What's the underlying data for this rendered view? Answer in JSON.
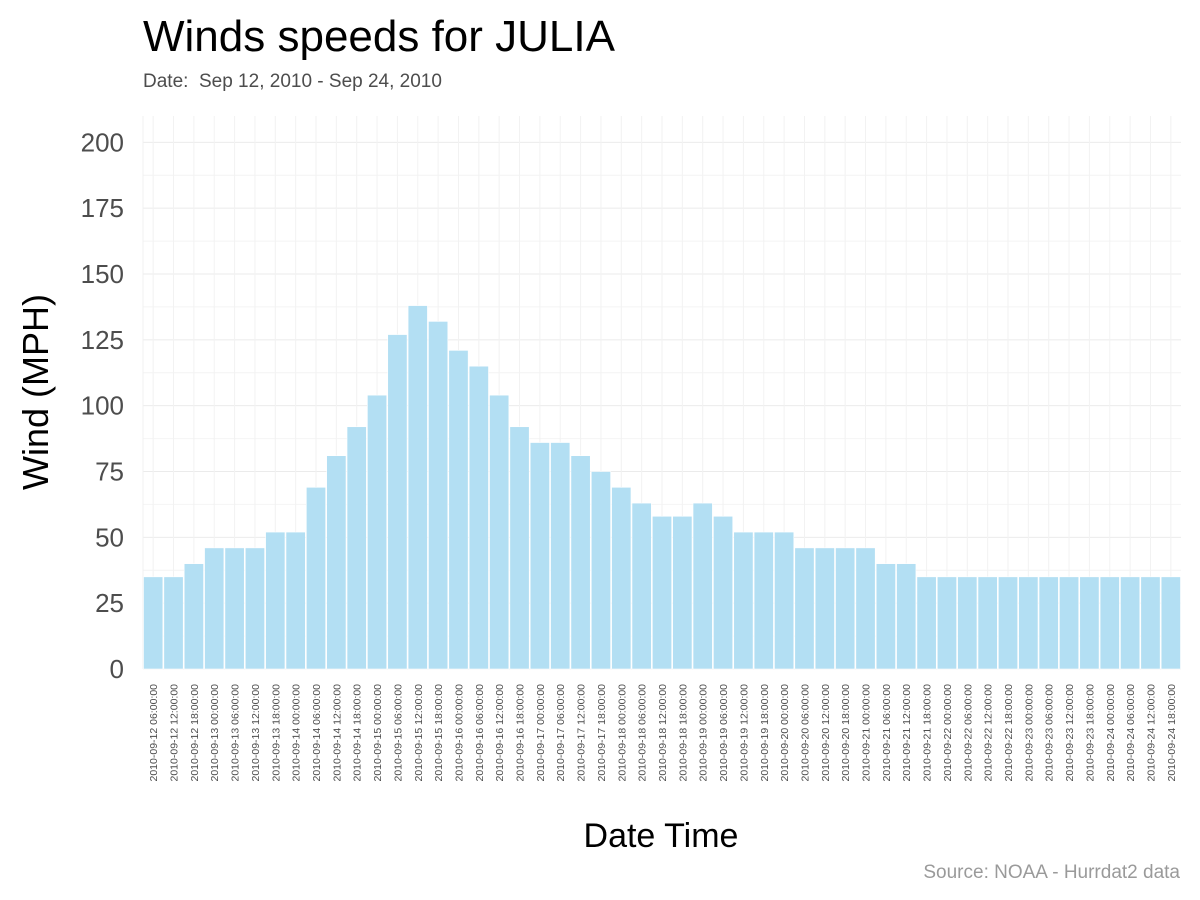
{
  "chart_data": {
    "type": "bar",
    "title": "Winds speeds for JULIA",
    "subtitle": "Date:  Sep 12, 2010 - Sep 24, 2010",
    "caption": "Source: NOAA - Hurrdat2 data",
    "xlabel": "Date Time",
    "ylabel": "Wind (MPH)",
    "ylim": [
      0,
      210
    ],
    "yticks": [
      0,
      25,
      50,
      75,
      100,
      125,
      150,
      175,
      200
    ],
    "grid": true,
    "bar_color": "#b3dff3",
    "categories": [
      "2010-09-12 06:00:00",
      "2010-09-12 12:00:00",
      "2010-09-12 18:00:00",
      "2010-09-13 00:00:00",
      "2010-09-13 06:00:00",
      "2010-09-13 12:00:00",
      "2010-09-13 18:00:00",
      "2010-09-14 00:00:00",
      "2010-09-14 06:00:00",
      "2010-09-14 12:00:00",
      "2010-09-14 18:00:00",
      "2010-09-15 00:00:00",
      "2010-09-15 06:00:00",
      "2010-09-15 12:00:00",
      "2010-09-15 18:00:00",
      "2010-09-16 00:00:00",
      "2010-09-16 06:00:00",
      "2010-09-16 12:00:00",
      "2010-09-16 18:00:00",
      "2010-09-17 00:00:00",
      "2010-09-17 06:00:00",
      "2010-09-17 12:00:00",
      "2010-09-17 18:00:00",
      "2010-09-18 00:00:00",
      "2010-09-18 06:00:00",
      "2010-09-18 12:00:00",
      "2010-09-18 18:00:00",
      "2010-09-19 00:00:00",
      "2010-09-19 06:00:00",
      "2010-09-19 12:00:00",
      "2010-09-19 18:00:00",
      "2010-09-20 00:00:00",
      "2010-09-20 06:00:00",
      "2010-09-20 12:00:00",
      "2010-09-20 18:00:00",
      "2010-09-21 00:00:00",
      "2010-09-21 06:00:00",
      "2010-09-21 12:00:00",
      "2010-09-21 18:00:00",
      "2010-09-22 00:00:00",
      "2010-09-22 06:00:00",
      "2010-09-22 12:00:00",
      "2010-09-22 18:00:00",
      "2010-09-23 00:00:00",
      "2010-09-23 06:00:00",
      "2010-09-23 12:00:00",
      "2010-09-23 18:00:00",
      "2010-09-24 00:00:00",
      "2010-09-24 06:00:00",
      "2010-09-24 12:00:00",
      "2010-09-24 18:00:00"
    ],
    "values": [
      35,
      35,
      40,
      46,
      46,
      46,
      52,
      52,
      69,
      81,
      92,
      104,
      127,
      138,
      132,
      121,
      115,
      104,
      92,
      86,
      86,
      81,
      75,
      69,
      63,
      58,
      58,
      63,
      58,
      52,
      52,
      52,
      46,
      46,
      46,
      46,
      40,
      40,
      35,
      35,
      35,
      35,
      35,
      35,
      35,
      35,
      35,
      35,
      35,
      35,
      35
    ]
  }
}
